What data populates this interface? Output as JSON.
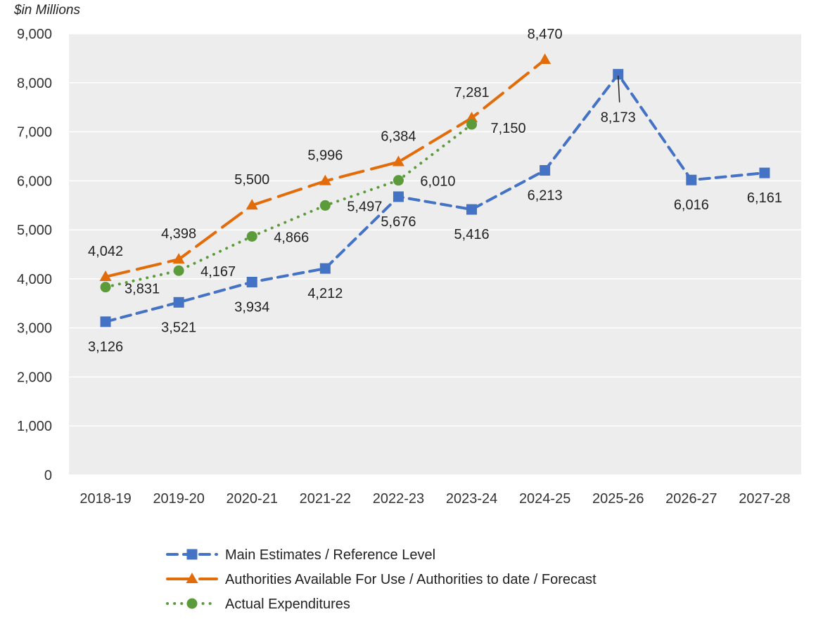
{
  "chart_data": {
    "type": "line",
    "unit_label": "$in Millions",
    "categories": [
      "2018-19",
      "2019-20",
      "2020-21",
      "2021-22",
      "2022-23",
      "2023-24",
      "2024-25",
      "2025-26",
      "2026-27",
      "2027-28"
    ],
    "ylim": [
      0,
      9000
    ],
    "yticks": [
      0,
      1000,
      2000,
      3000,
      4000,
      5000,
      6000,
      7000,
      8000,
      9000
    ],
    "ytick_labels": [
      "0",
      "1,000",
      "2,000",
      "3,000",
      "4,000",
      "5,000",
      "6,000",
      "7,000",
      "8,000",
      "9,000"
    ],
    "grid": true,
    "legend_position": "bottom",
    "series": [
      {
        "name": "Main Estimates / Reference Level",
        "color": "#4472C4",
        "line_style": "dashed",
        "marker": "square",
        "values": [
          3126,
          3521,
          3934,
          4212,
          5676,
          5416,
          6213,
          8173,
          6016,
          6161
        ],
        "labels": [
          "3,126",
          "3,521",
          "3,934",
          "4,212",
          "5,676",
          "5,416",
          "6,213",
          "8,173",
          "6,016",
          "6,161"
        ]
      },
      {
        "name": "Authorities Available For Use / Authorities to date  / Forecast",
        "color": "#E36C0A",
        "line_style": "long-dash",
        "marker": "triangle",
        "values": [
          4042,
          4398,
          5500,
          5996,
          6384,
          7281,
          8470,
          null,
          null,
          null
        ],
        "labels": [
          "4,042",
          "4,398",
          "5,500",
          "5,996",
          "6,384",
          "7,281",
          "8,470",
          null,
          null,
          null
        ]
      },
      {
        "name": "Actual Expenditures",
        "color": "#5B9B3A",
        "line_style": "dotted",
        "marker": "circle",
        "values": [
          3831,
          4167,
          4866,
          5497,
          6010,
          7150,
          null,
          null,
          null,
          null
        ],
        "labels": [
          "3,831",
          "4,167",
          "4,866",
          "5,497",
          "6,010",
          "7,150",
          null,
          null,
          null,
          null
        ]
      }
    ]
  }
}
